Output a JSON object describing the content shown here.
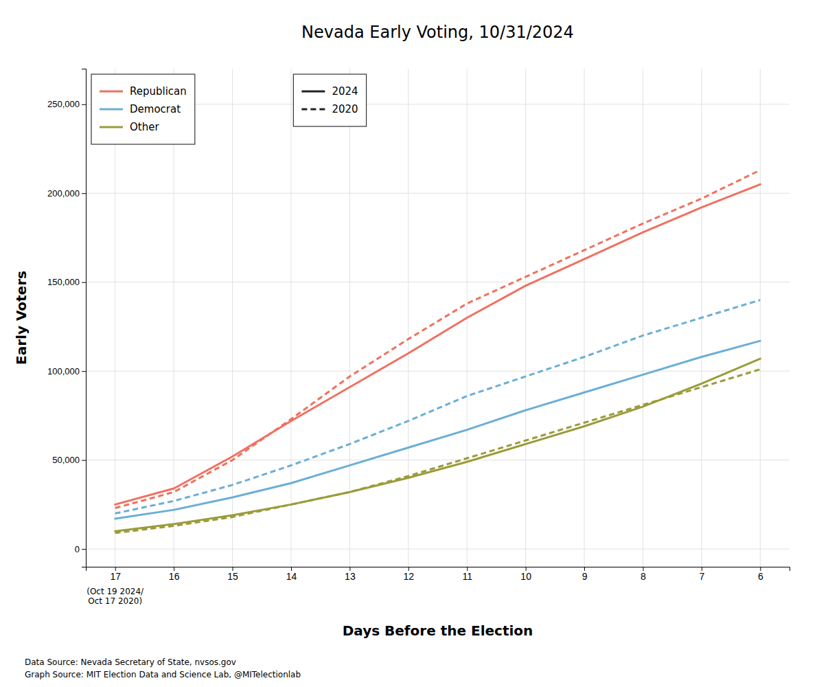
{
  "chart_data": {
    "type": "line",
    "title": "Nevada Early Voting, 10/31/2024",
    "x_label": "Days Before the Election",
    "y_label": "Early Voters",
    "x": [
      17,
      16,
      15,
      14,
      13,
      12,
      11,
      10,
      9,
      8,
      7,
      6
    ],
    "xlim": [
      17.5,
      5.5
    ],
    "xticks": [
      17,
      16,
      15,
      14,
      13,
      12,
      11,
      10,
      9,
      8,
      7,
      6
    ],
    "ylim": [
      -10000,
      270000
    ],
    "yticks": [
      0,
      {
        "value": 50000,
        "label": "50,000"
      },
      {
        "value": 100000,
        "label": "100,000"
      },
      {
        "value": 150000,
        "label": "150,000"
      },
      {
        "value": 200000,
        "label": "200,000"
      },
      {
        "value": 250000,
        "label": "250,000"
      }
    ],
    "grid": true,
    "legend": "upper left",
    "line_styles": [
      {
        "name": "2024",
        "line_style": "solid"
      },
      {
        "name": "2020",
        "line_style": "dashed"
      }
    ],
    "series": [
      {
        "name": "Republican",
        "color": "#F07060",
        "line_style": "solid",
        "values": [
          25000,
          34000,
          52000,
          72000,
          91000,
          110000,
          130000,
          148000,
          163000,
          178000,
          192000,
          205000
        ]
      },
      {
        "name": "Democrat",
        "color": "#6BAED6",
        "line_style": "solid",
        "values": [
          17000,
          22000,
          29000,
          37000,
          47000,
          57000,
          67000,
          78000,
          88000,
          98000,
          108000,
          117000
        ]
      },
      {
        "name": "Other",
        "color": "#9B9B3A",
        "line_style": "solid",
        "values": [
          10000,
          14000,
          19000,
          25000,
          32000,
          40000,
          49000,
          59000,
          69000,
          80000,
          93000,
          107000
        ]
      },
      {
        "name": "Republican",
        "color": "#F07060",
        "line_style": "dashed",
        "values": [
          23000,
          32000,
          50000,
          73000,
          97000,
          118000,
          138000,
          153000,
          168000,
          183000,
          197000,
          213000
        ]
      },
      {
        "name": "Democrat",
        "color": "#6BAED6",
        "line_style": "dashed",
        "values": [
          20000,
          27000,
          36000,
          47000,
          59000,
          72000,
          86000,
          97000,
          108000,
          120000,
          130000,
          140000
        ]
      },
      {
        "name": "Other",
        "color": "#9B9B3A",
        "line_style": "dashed",
        "values": [
          9000,
          13000,
          18000,
          25000,
          32000,
          41000,
          51000,
          61000,
          71000,
          81000,
          91000,
          101000
        ]
      }
    ],
    "annotations": [
      {
        "text": "(Oct 19 2024/\nOct 17 2020)",
        "x": 17
      }
    ],
    "footnotes": [
      "Data Source: Nevada Secretary of State, nvsos.gov",
      "Graph Source: MIT Election Data and Science Lab, @MITelectionlab"
    ]
  }
}
